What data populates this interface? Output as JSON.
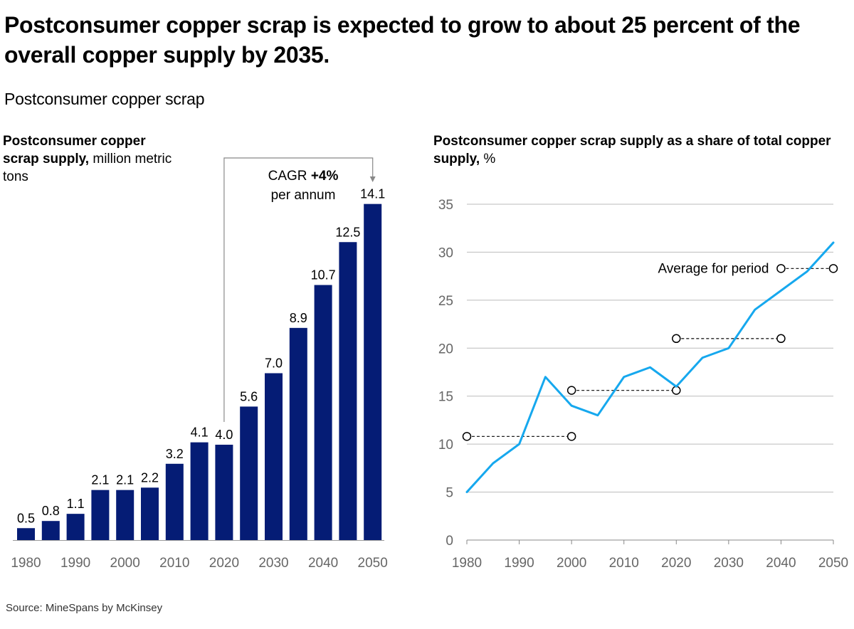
{
  "headline": "Postconsumer copper scrap is expected to grow to about 25 percent of the overall copper supply by 2035.",
  "subhead": "Postconsumer copper scrap",
  "source": "Source: MineSpans by McKinsey",
  "chart_data": [
    {
      "type": "bar",
      "title_bold": "Postconsumer copper scrap supply,",
      "title_unit": "million metric tons",
      "categories": [
        "1980",
        "1985",
        "1990",
        "1995",
        "2000",
        "2005",
        "2010",
        "2015",
        "2020",
        "2025",
        "2030",
        "2035",
        "2040",
        "2045",
        "2050"
      ],
      "tick_labels": [
        "1980",
        "1990",
        "2000",
        "2010",
        "2020",
        "2030",
        "2040",
        "2050"
      ],
      "values": [
        0.5,
        0.8,
        1.1,
        2.1,
        2.1,
        2.2,
        3.2,
        4.1,
        4.0,
        5.6,
        7.0,
        8.9,
        10.7,
        12.5,
        14.1
      ],
      "value_labels": [
        "0.5",
        "0.8",
        "1.1",
        "2.1",
        "2.1",
        "2.2",
        "3.2",
        "4.1",
        "4.0",
        "5.6",
        "7.0",
        "8.9",
        "10.7",
        "12.5",
        "14.1"
      ],
      "ylim": [
        0,
        15
      ],
      "color": "#051c75",
      "annotation": {
        "prefix": "CAGR ",
        "bold": "+4%",
        "line2": "per annum",
        "from": "2020",
        "to": "2050"
      }
    },
    {
      "type": "line",
      "title_bold": "Postconsumer copper scrap supply as a share of total copper supply,",
      "title_unit": "%",
      "x": [
        1980,
        1985,
        1990,
        1995,
        2000,
        2005,
        2010,
        2015,
        2020,
        2025,
        2030,
        2035,
        2040,
        2045,
        2050
      ],
      "y": [
        5,
        8,
        10,
        17,
        14,
        13,
        17,
        18,
        16,
        19,
        20,
        24,
        26,
        28,
        31
      ],
      "xlim": [
        1980,
        2050
      ],
      "ylim": [
        0,
        35
      ],
      "y_ticks": [
        "0",
        "5",
        "10",
        "15",
        "20",
        "25",
        "30",
        "35"
      ],
      "x_ticks": [
        "1980",
        "1990",
        "2000",
        "2010",
        "2020",
        "2030",
        "2040",
        "2050"
      ],
      "color": "#16a8ee",
      "period_averages": [
        {
          "start": 1980,
          "end": 2000,
          "value": 10.8
        },
        {
          "start": 2000,
          "end": 2020,
          "value": 15.6
        },
        {
          "start": 2020,
          "end": 2040,
          "value": 21
        },
        {
          "start": 2040,
          "end": 2050,
          "value": 28.3
        }
      ],
      "average_label": "Average for period"
    }
  ]
}
